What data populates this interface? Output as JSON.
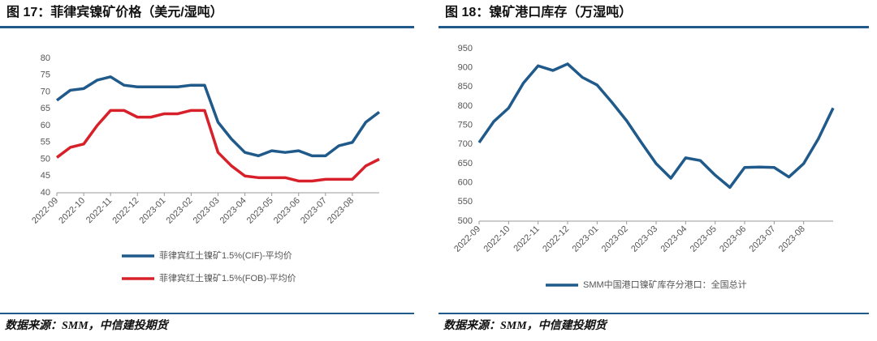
{
  "chart_data": [
    {
      "type": "line",
      "title": "图 17：菲律宾镍矿价格（美元/湿吨）",
      "source": "数据来源：SMM，中信建投期货",
      "categories": [
        "2022-09",
        null,
        "2022-10",
        null,
        "2022-11",
        null,
        "2022-12",
        null,
        "2023-01",
        null,
        "2023-02",
        null,
        "2023-03",
        null,
        "2023-04",
        null,
        "2023-05",
        null,
        "2023-06",
        null,
        "2023-07",
        null,
        "2023-08",
        null,
        null
      ],
      "series": [
        {
          "name": "菲律宾红土镍矿1.5%(CIF)-平均价",
          "color": "#1f5a8a",
          "values": [
            67.5,
            70.5,
            71,
            73.5,
            74.5,
            72,
            71.5,
            71.5,
            71.5,
            71.5,
            72,
            72,
            61,
            56,
            52,
            51,
            52.5,
            52,
            52.5,
            51,
            51,
            54,
            55,
            61,
            64
          ]
        },
        {
          "name": "菲律宾红土镍矿1.5%(FOB)-平均价",
          "color": "#d7202a",
          "values": [
            50.5,
            53.5,
            54.5,
            60,
            64.5,
            64.5,
            62.5,
            62.5,
            63.5,
            63.5,
            64.5,
            64.5,
            52,
            48,
            45,
            44.5,
            44.5,
            44.5,
            43.5,
            43.5,
            44,
            44,
            44,
            48,
            50
          ]
        }
      ],
      "ylim": [
        40,
        80
      ],
      "yticks": [
        40,
        45,
        50,
        55,
        60,
        65,
        70,
        75,
        80
      ],
      "grid": false
    },
    {
      "type": "line",
      "title": "图 18：镍矿港口库存（万湿吨）",
      "source": "数据来源：SMM，中信建投期货",
      "categories": [
        "2022-09",
        null,
        "2022-10",
        null,
        "2022-11",
        null,
        "2022-12",
        null,
        "2023-01",
        null,
        "2023-02",
        null,
        "2023-03",
        null,
        "2023-04",
        null,
        "2023-05",
        null,
        "2023-06",
        null,
        "2023-07",
        null,
        "2023-08",
        null,
        null
      ],
      "series": [
        {
          "name": "SMM中国港口镍矿库存分港口：全国总计",
          "color": "#1f5a8a",
          "values": [
            705,
            760,
            795,
            860,
            905,
            893,
            910,
            875,
            855,
            810,
            762,
            705,
            650,
            612,
            665,
            658,
            620,
            588,
            640,
            641,
            640,
            615,
            650,
            715,
            795
          ]
        }
      ],
      "ylim": [
        500,
        950
      ],
      "yticks": [
        500,
        550,
        600,
        650,
        700,
        750,
        800,
        850,
        900,
        950
      ],
      "grid": false
    }
  ]
}
